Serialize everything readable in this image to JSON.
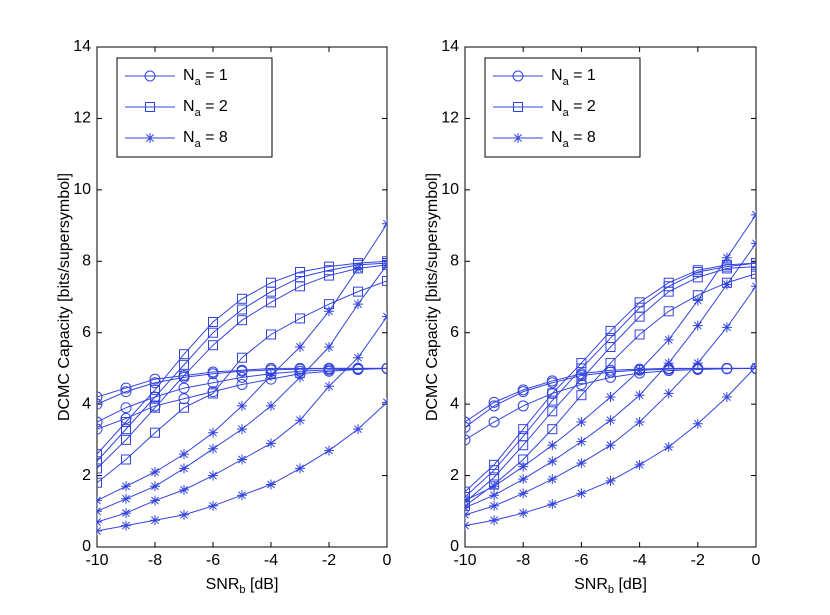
{
  "chart_data": [
    {
      "type": "line",
      "ylabel": "DCMC Capacity [bits/supersymbol]",
      "xlabel": "SNR",
      "xlabel_sub": "b",
      "xlabel_rest": " [dB]",
      "x": [
        -10,
        -9,
        -8,
        -7,
        -6,
        -5,
        -4,
        -3,
        -2,
        -1,
        0
      ],
      "xlim": [
        -10,
        0
      ],
      "xticks": [
        -10,
        -8,
        -6,
        -4,
        -2,
        0
      ],
      "ylim": [
        0,
        14
      ],
      "yticks": [
        0,
        2,
        4,
        6,
        8,
        10,
        12,
        14
      ],
      "legend": "upper left",
      "series": [
        {
          "name": "N",
          "name_sub": "a",
          "name_rest": " = 1",
          "marker": "circle",
          "color": "#3344dd",
          "values": [
            [
              4.2,
              4.45,
              4.7,
              4.8,
              4.9,
              4.95,
              5.0,
              5.0,
              5.0,
              5.0,
              5.0
            ],
            [
              4.0,
              4.35,
              4.6,
              4.75,
              4.85,
              4.92,
              4.96,
              4.98,
              5.0,
              5.0,
              5.0
            ],
            [
              3.5,
              3.9,
              4.2,
              4.45,
              4.6,
              4.75,
              4.85,
              4.92,
              4.96,
              4.98,
              5.0
            ],
            [
              3.3,
              3.6,
              3.95,
              4.15,
              4.35,
              4.55,
              4.7,
              4.85,
              4.92,
              4.97,
              5.0
            ]
          ]
        },
        {
          "name": "N",
          "name_sub": "a",
          "name_rest": " = 2",
          "marker": "square",
          "color": "#3344dd",
          "values": [
            [
              2.6,
              3.5,
              4.4,
              5.4,
              6.3,
              6.95,
              7.4,
              7.7,
              7.85,
              7.95,
              8.0
            ],
            [
              2.4,
              3.3,
              4.2,
              5.1,
              6.0,
              6.65,
              7.15,
              7.55,
              7.75,
              7.9,
              7.95
            ],
            [
              2.2,
              3.0,
              3.9,
              4.8,
              5.65,
              6.35,
              6.85,
              7.3,
              7.6,
              7.8,
              7.9
            ],
            [
              1.8,
              2.45,
              3.2,
              3.9,
              4.3,
              5.3,
              5.95,
              6.4,
              6.8,
              7.15,
              7.45
            ]
          ]
        },
        {
          "name": "N",
          "name_sub": "a",
          "name_rest": " = 8",
          "marker": "star",
          "color": "#3344dd",
          "values": [
            [
              1.3,
              1.7,
              2.1,
              2.6,
              3.2,
              3.95,
              4.8,
              5.6,
              6.6,
              7.8,
              9.05
            ],
            [
              1.0,
              1.35,
              1.7,
              2.2,
              2.75,
              3.3,
              3.95,
              4.75,
              5.6,
              6.8,
              7.9
            ],
            [
              0.7,
              0.95,
              1.3,
              1.6,
              2.0,
              2.45,
              2.9,
              3.55,
              4.5,
              5.3,
              6.45
            ],
            [
              0.45,
              0.6,
              0.75,
              0.9,
              1.15,
              1.45,
              1.75,
              2.2,
              2.7,
              3.3,
              4.05
            ]
          ]
        }
      ]
    },
    {
      "type": "line",
      "ylabel": "DCMC Capacity [bits/supersymbol]",
      "xlabel": "SNR",
      "xlabel_sub": "b",
      "xlabel_rest": " [dB]",
      "x": [
        -10,
        -9,
        -8,
        -7,
        -6,
        -5,
        -4,
        -3,
        -2,
        -1,
        0
      ],
      "xlim": [
        -10,
        0
      ],
      "xticks": [
        -10,
        -8,
        -6,
        -4,
        -2,
        0
      ],
      "ylim": [
        0,
        14
      ],
      "yticks": [
        0,
        2,
        4,
        6,
        8,
        10,
        12,
        14
      ],
      "legend": "upper left",
      "series": [
        {
          "name": "N",
          "name_sub": "a",
          "name_rest": " = 1",
          "marker": "circle",
          "color": "#3344dd",
          "values": [
            [
              3.5,
              4.05,
              4.4,
              4.65,
              4.85,
              4.95,
              4.98,
              5.0,
              5.0,
              5.0,
              5.0
            ],
            [
              3.35,
              3.95,
              4.35,
              4.6,
              4.8,
              4.9,
              4.95,
              4.98,
              5.0,
              5.0,
              5.0
            ],
            [
              3.0,
              3.5,
              3.95,
              4.3,
              4.55,
              4.75,
              4.87,
              4.94,
              4.97,
              4.99,
              5.0
            ]
          ]
        },
        {
          "name": "N",
          "name_sub": "a",
          "name_rest": " = 2",
          "marker": "square",
          "color": "#3344dd",
          "values": [
            [
              1.55,
              2.3,
              3.3,
              4.3,
              5.15,
              6.05,
              6.85,
              7.4,
              7.75,
              7.9,
              7.95
            ],
            [
              1.4,
              2.15,
              3.1,
              4.1,
              5.0,
              5.85,
              6.7,
              7.3,
              7.7,
              7.85,
              7.95
            ],
            [
              1.25,
              1.95,
              2.85,
              3.8,
              4.7,
              5.6,
              6.45,
              7.15,
              7.55,
              7.8,
              7.85
            ],
            [
              1.15,
              1.75,
              2.45,
              3.3,
              4.25,
              5.15,
              5.95,
              6.6,
              7.05,
              7.4,
              7.65
            ]
          ]
        },
        {
          "name": "N",
          "name_sub": "a",
          "name_rest": " = 8",
          "marker": "star",
          "color": "#3344dd",
          "values": [
            [
              1.3,
              1.7,
              2.25,
              2.85,
              3.5,
              4.2,
              4.95,
              5.8,
              6.9,
              8.1,
              9.3
            ],
            [
              1.1,
              1.45,
              1.9,
              2.4,
              2.95,
              3.55,
              4.25,
              5.15,
              6.2,
              7.35,
              8.5
            ],
            [
              0.9,
              1.15,
              1.5,
              1.9,
              2.35,
              2.85,
              3.5,
              4.3,
              5.15,
              6.15,
              7.3
            ],
            [
              0.6,
              0.75,
              0.95,
              1.2,
              1.5,
              1.85,
              2.3,
              2.8,
              3.45,
              4.2,
              5.05
            ]
          ]
        }
      ]
    }
  ]
}
